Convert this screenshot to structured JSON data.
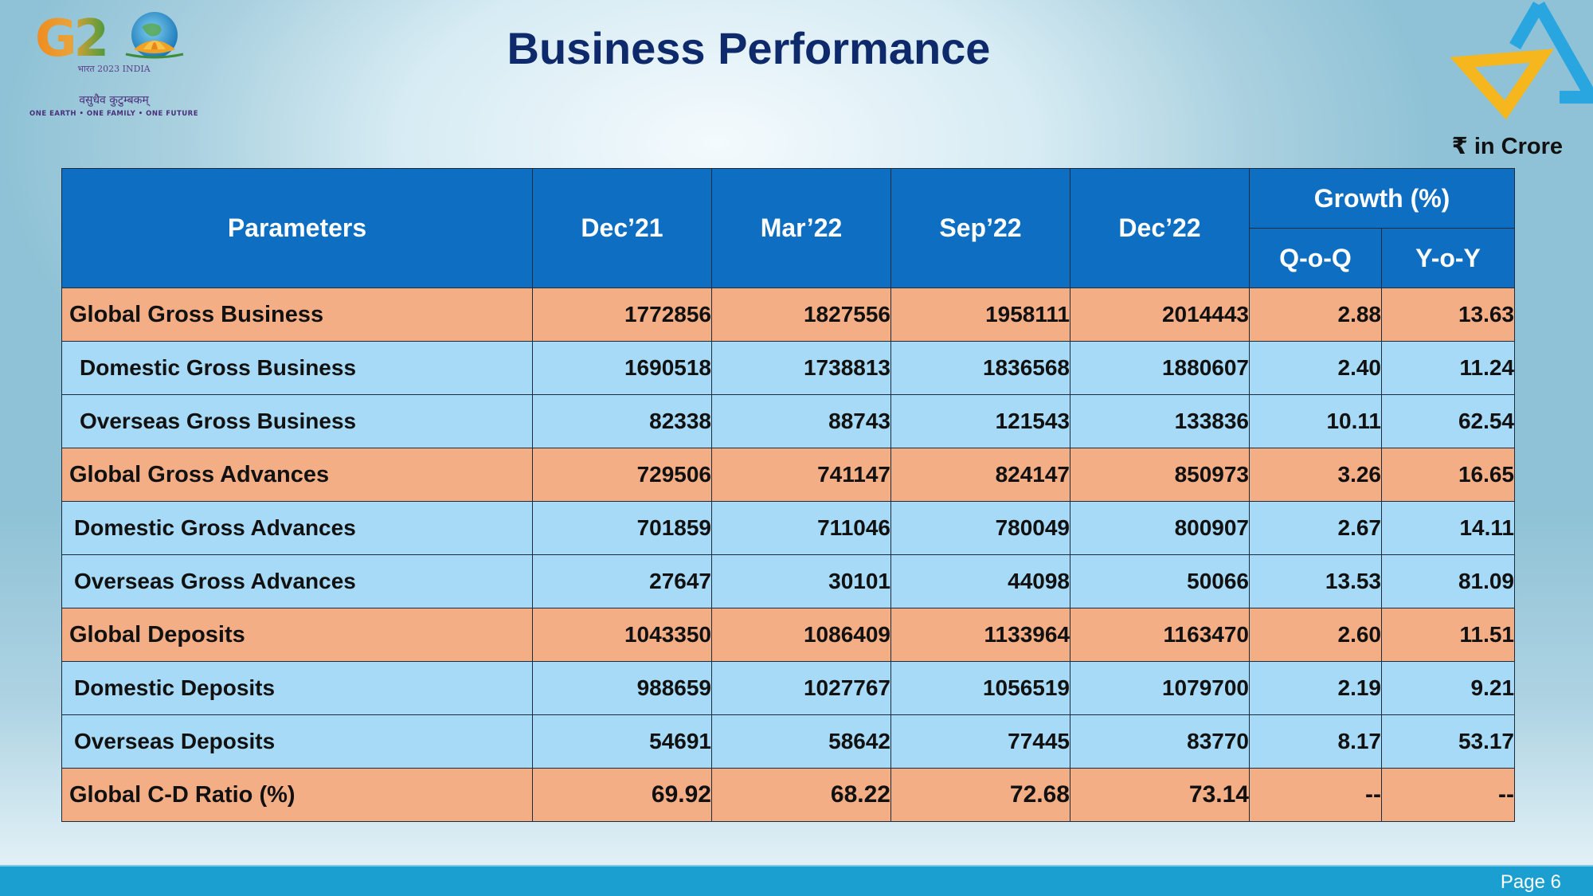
{
  "slide": {
    "title": "Business Performance",
    "unit": "₹ in Crore",
    "page": "Page 6"
  },
  "logo": {
    "g20_mark": "G20",
    "g20_sub": "भारत 2023 INDIA",
    "g20_hindi": "वसुधैव कुटुम्बकम्",
    "g20_tagline": "ONE EARTH • ONE FAMILY • ONE FUTURE",
    "bank_logo_icon": "triangle-logo-icon"
  },
  "colors": {
    "header_blue": "#0e6ec2",
    "main_row": "#f4ae86",
    "sub_row": "#a7daf6",
    "title_navy": "#0e2a6b",
    "footer_bar": "#1b9fd0"
  },
  "table": {
    "headers": {
      "parameters": "Parameters",
      "dec21": "Dec’21",
      "mar22": "Mar’22",
      "sep22": "Sep’22",
      "dec22": "Dec’22",
      "growth": "Growth (%)",
      "qoq": "Q-o-Q",
      "yoy": "Y-o-Y"
    },
    "rows": [
      {
        "label": "Global Gross Business",
        "dec21": "1772856",
        "mar22": "1827556",
        "sep22": "1958111",
        "dec22": "2014443",
        "qoq": "2.88",
        "yoy": "13.63"
      },
      {
        "label": "Domestic Gross Business",
        "dec21": "1690518",
        "mar22": "1738813",
        "sep22": "1836568",
        "dec22": "1880607",
        "qoq": "2.40",
        "yoy": "11.24"
      },
      {
        "label": "Overseas Gross Business",
        "dec21": "82338",
        "mar22": "88743",
        "sep22": "121543",
        "dec22": "133836",
        "qoq": "10.11",
        "yoy": "62.54"
      },
      {
        "label": "Global Gross Advances",
        "dec21": "729506",
        "mar22": "741147",
        "sep22": "824147",
        "dec22": "850973",
        "qoq": "3.26",
        "yoy": "16.65"
      },
      {
        "label": "Domestic Gross Advances",
        "dec21": "701859",
        "mar22": "711046",
        "sep22": "780049",
        "dec22": "800907",
        "qoq": "2.67",
        "yoy": "14.11"
      },
      {
        "label": "Overseas Gross Advances",
        "dec21": "27647",
        "mar22": "30101",
        "sep22": "44098",
        "dec22": "50066",
        "qoq": "13.53",
        "yoy": "81.09"
      },
      {
        "label": "Global Deposits",
        "dec21": "1043350",
        "mar22": "1086409",
        "sep22": "1133964",
        "dec22": "1163470",
        "qoq": "2.60",
        "yoy": "11.51"
      },
      {
        "label": "Domestic Deposits",
        "dec21": "988659",
        "mar22": "1027767",
        "sep22": "1056519",
        "dec22": "1079700",
        "qoq": "2.19",
        "yoy": "9.21"
      },
      {
        "label": "Overseas Deposits",
        "dec21": "54691",
        "mar22": "58642",
        "sep22": "77445",
        "dec22": "83770",
        "qoq": "8.17",
        "yoy": "53.17"
      },
      {
        "label": "Global C-D Ratio (%)",
        "dec21": "69.92",
        "mar22": "68.22",
        "sep22": "72.68",
        "dec22": "73.14",
        "qoq": "--",
        "yoy": "--"
      }
    ]
  }
}
